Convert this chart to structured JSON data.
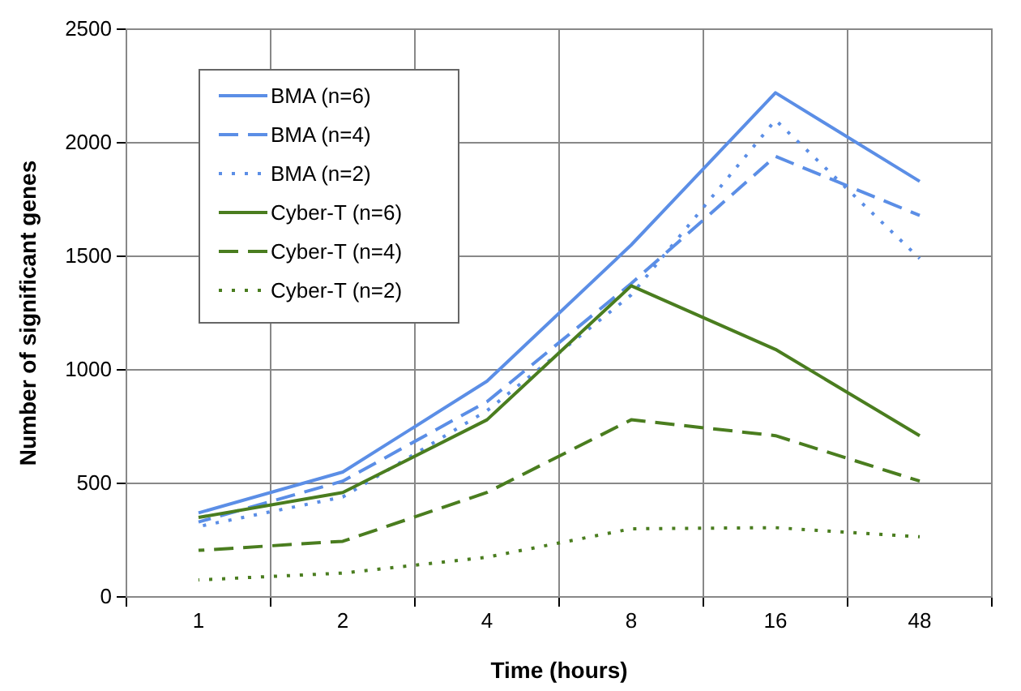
{
  "chart_data": {
    "type": "line",
    "xlabel": "Time (hours)",
    "ylabel": "Number of significant genes",
    "categories": [
      "1",
      "2",
      "4",
      "8",
      "16",
      "48"
    ],
    "ylim": [
      0,
      2500
    ],
    "yticks": [
      0,
      500,
      1000,
      1500,
      2000,
      2500
    ],
    "grid": true,
    "legend": "top left",
    "marker": "none",
    "series": [
      {
        "name": "BMA (n=6)",
        "color": "#5b8ee6",
        "line_style": "solid",
        "values": [
          370,
          550,
          950,
          1550,
          2220,
          1830
        ]
      },
      {
        "name": "BMA (n=4)",
        "color": "#5b8ee6",
        "line_style": "dashed",
        "values": [
          330,
          510,
          860,
          1380,
          1940,
          1680
        ]
      },
      {
        "name": "BMA (n=2)",
        "color": "#5b8ee6",
        "line_style": "dotted",
        "values": [
          310,
          440,
          820,
          1330,
          2100,
          1490
        ]
      },
      {
        "name": "Cyber-T (n=6)",
        "color": "#4a7d1f",
        "line_style": "solid",
        "values": [
          350,
          460,
          780,
          1370,
          1090,
          710
        ]
      },
      {
        "name": "Cyber-T (n=4)",
        "color": "#4a7d1f",
        "line_style": "dashed",
        "values": [
          205,
          245,
          460,
          780,
          710,
          510
        ]
      },
      {
        "name": "Cyber-T (n=2)",
        "color": "#4a7d1f",
        "line_style": "dotted",
        "values": [
          75,
          105,
          175,
          300,
          305,
          265
        ]
      }
    ]
  }
}
